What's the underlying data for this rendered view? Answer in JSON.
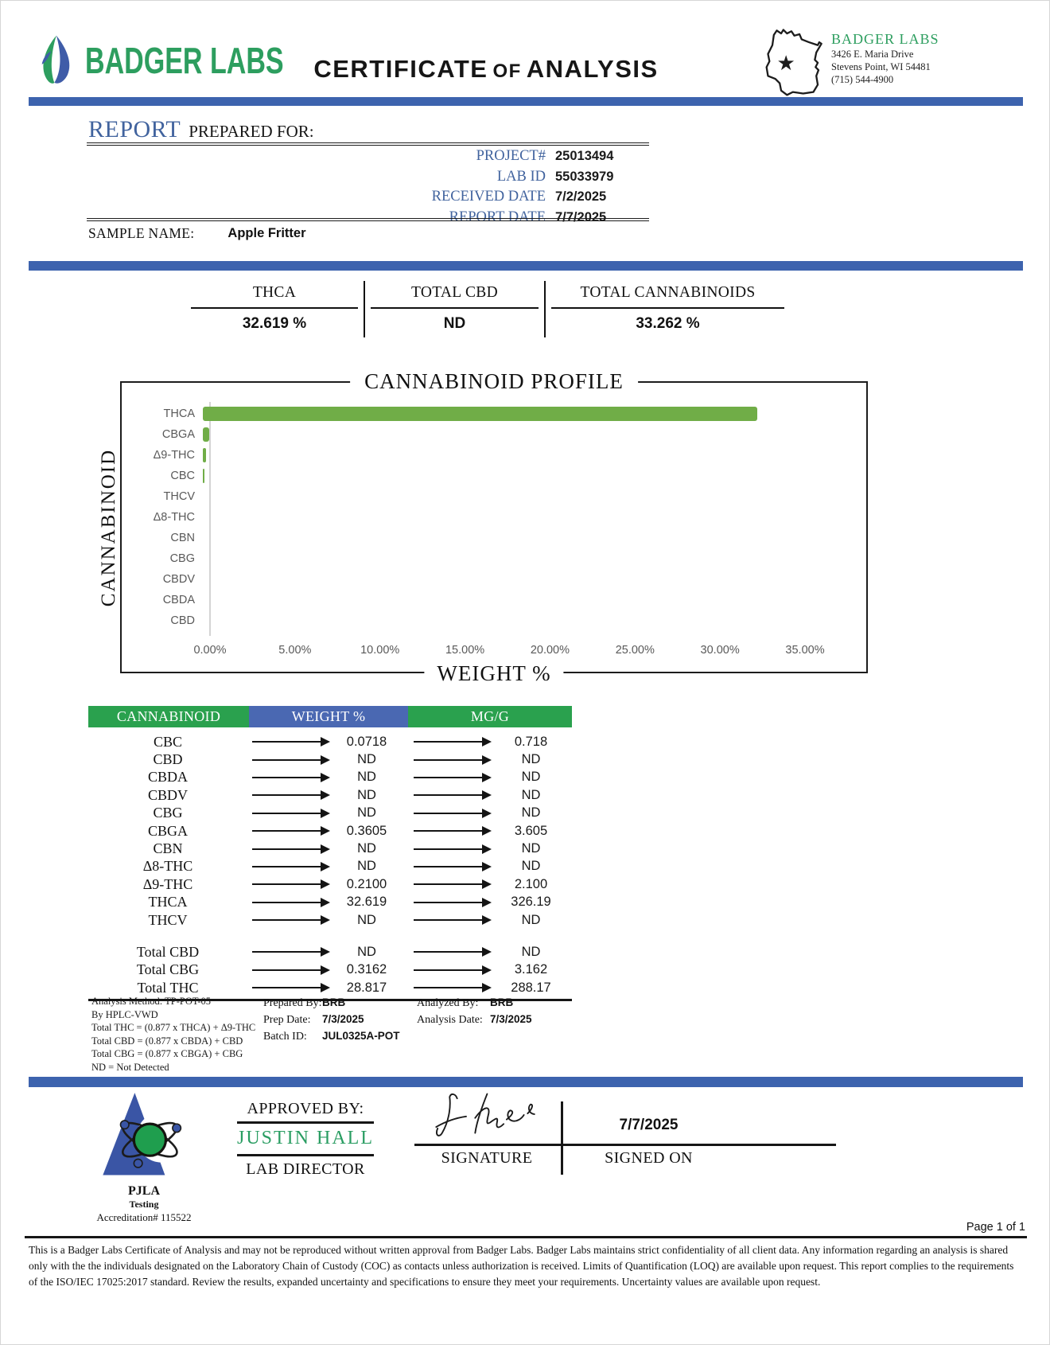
{
  "colors": {
    "accent_blue": "#3d63ae",
    "header_green": "#2aa14e",
    "header_blue": "#4a68b2",
    "bar_green": "#70ad47",
    "brand_green": "#2d9e5f",
    "label_blue": "#41639e",
    "approver_green": "#2a9d62",
    "pjla_blue": "#3a55a5"
  },
  "header": {
    "logo_text": "BADGER LABS",
    "title_parts": [
      "CERTIFICATE",
      "OF",
      "ANALYSIS"
    ],
    "lab_block": {
      "name": "BADGER LABS",
      "address_line1": "3426 E. Maria Drive",
      "address_line2": "Stevens Point, WI 54481",
      "phone": "(715) 544-4900"
    }
  },
  "report": {
    "section_title_primary": "REPORT",
    "section_title_secondary": "PREPARED FOR:",
    "fields": [
      {
        "label": "PROJECT#",
        "value": "25013494"
      },
      {
        "label": "LAB ID",
        "value": "55033979"
      },
      {
        "label": "RECEIVED DATE",
        "value": "7/2/2025"
      },
      {
        "label": "REPORT DATE",
        "value": "7/7/2025"
      }
    ],
    "sample_name_label": "SAMPLE NAME:",
    "sample_name": "Apple Fritter"
  },
  "summary": {
    "columns": [
      {
        "label": "THCA",
        "value": "32.619 %"
      },
      {
        "label": "TOTAL CBD",
        "value": "ND"
      },
      {
        "label": "TOTAL CANNABINOIDS",
        "value": "33.262 %"
      }
    ]
  },
  "chart_data": {
    "type": "bar",
    "orientation": "horizontal",
    "title": "CANNABINOID PROFILE",
    "xlabel": "WEIGHT %",
    "ylabel": "CANNABINOID",
    "categories": [
      "THCA",
      "CBGA",
      "Δ9-THC",
      "CBC",
      "THCV",
      "Δ8-THC",
      "CBN",
      "CBG",
      "CBDV",
      "CBDA",
      "CBD"
    ],
    "values": [
      32.619,
      0.3605,
      0.21,
      0.0718,
      0,
      0,
      0,
      0,
      0,
      0,
      0
    ],
    "xlim": [
      0,
      35
    ],
    "x_ticks": [
      "0.00%",
      "5.00%",
      "10.00%",
      "15.00%",
      "20.00%",
      "25.00%",
      "30.00%",
      "35.00%"
    ],
    "grid": false,
    "legend": "none"
  },
  "table": {
    "headers": [
      "CANNABINOID",
      "WEIGHT %",
      "MG/G"
    ],
    "rows": [
      {
        "name": "CBC",
        "weight": "0.0718",
        "mgg": "0.718"
      },
      {
        "name": "CBD",
        "weight": "ND",
        "mgg": "ND"
      },
      {
        "name": "CBDA",
        "weight": "ND",
        "mgg": "ND"
      },
      {
        "name": "CBDV",
        "weight": "ND",
        "mgg": "ND"
      },
      {
        "name": "CBG",
        "weight": "ND",
        "mgg": "ND"
      },
      {
        "name": "CBGA",
        "weight": "0.3605",
        "mgg": "3.605"
      },
      {
        "name": "CBN",
        "weight": "ND",
        "mgg": "ND"
      },
      {
        "name": "Δ8-THC",
        "weight": "ND",
        "mgg": "ND"
      },
      {
        "name": "Δ9-THC",
        "weight": "0.2100",
        "mgg": "2.100"
      },
      {
        "name": "THCA",
        "weight": "32.619",
        "mgg": "326.19"
      },
      {
        "name": "THCV",
        "weight": "ND",
        "mgg": "ND"
      }
    ],
    "total_rows": [
      {
        "name": "Total CBD",
        "weight": "ND",
        "mgg": "ND"
      },
      {
        "name": "Total CBG",
        "weight": "0.3162",
        "mgg": "3.162"
      },
      {
        "name": "Total THC",
        "weight": "28.817",
        "mgg": "288.17"
      }
    ]
  },
  "methods": {
    "left_lines": [
      "Analysis Method: TP-POT-05",
      "By HPLC-VWD",
      "Total THC = (0.877 x  THCA) + Δ9-THC",
      "Total CBD = (0.877 x  CBDA) + CBD",
      "Total CBG = (0.877 x  CBGA) + CBG",
      "ND = Not Detected"
    ],
    "prepared_by_label": "Prepared By:",
    "prepared_by": "BRB",
    "prep_date_label": "Prep Date:",
    "prep_date": "7/3/2025",
    "batch_id_label": "Batch ID:",
    "batch_id": "JUL0325A-POT",
    "analyzed_by_label": "Analyzed By:",
    "analyzed_by": "BRB",
    "analysis_date_label": "Analysis Date:",
    "analysis_date": "7/3/2025"
  },
  "approval": {
    "pjla_line1": "PJLA",
    "pjla_line2": "Testing",
    "accreditation": "Accreditation# 115522",
    "approved_by_label": "APPROVED BY:",
    "approver_name": "JUSTIN HALL",
    "approver_title": "LAB DIRECTOR",
    "signature_label": "SIGNATURE",
    "signed_on_label": "SIGNED ON",
    "signed_date": "7/7/2025",
    "page_label": "Page 1 of 1"
  },
  "disclaimer": "This is a Badger Labs Certificate of Analysis and may not be reproduced without written approval from Badger Labs. Badger Labs maintains strict confidentiality of all client data. Any information regarding an analysis is shared only with the the individuals designated on the Laboratory Chain of Custody (COC) as contacts unless authorization is received. Limits of Quantification (LOQ) are available upon request. This report complies to the requirements of the ISO/IEC 17025:2017 standard. Review the results, expanded uncertainty and specifications to ensure they meet your requirements. Uncertainty values are available upon request."
}
